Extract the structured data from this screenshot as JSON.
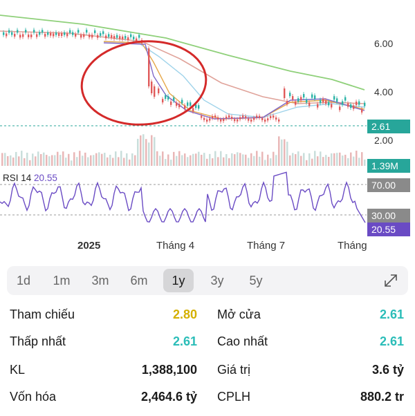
{
  "chart": {
    "y_axis_labels": [
      "6.00",
      "4.00",
      "2.00"
    ],
    "last_price": "2.61",
    "last_volume": "1.39M",
    "rsi_title": "RSI 14",
    "rsi_value": "20.55",
    "rsi_levels": [
      "70.00",
      "30.00"
    ],
    "x_axis_labels": [
      "2025",
      "Tháng 4",
      "Tháng 7",
      "Tháng"
    ],
    "colors": {
      "price_tag": "#27a69a",
      "volume_tag": "#27a69a",
      "rsi_tag": "#6a4bc4",
      "level_tag": "#8a8a8a",
      "ma_long": "#8fd07a",
      "ma_mid": "#e0a39a",
      "ma_short": "#9fd3ea",
      "ma_fast": "#e6a84a",
      "ma_faster": "#7e66c8",
      "annotation_circle": "#d42a2a",
      "rsi_line": "#6a4bc4"
    }
  },
  "periods": {
    "items": [
      "1d",
      "1m",
      "3m",
      "6m",
      "1y",
      "3y",
      "5y"
    ],
    "active": "1y"
  },
  "stats": {
    "tham_chieu_label": "Tham chiếu",
    "tham_chieu_value": "2.80",
    "mo_cua_label": "Mở cửa",
    "mo_cua_value": "2.61",
    "thap_nhat_label": "Thấp nhất",
    "thap_nhat_value": "2.61",
    "cao_nhat_label": "Cao nhất",
    "cao_nhat_value": "2.61",
    "kl_label": "KL",
    "kl_value": "1,388,100",
    "gia_tri_label": "Giá trị",
    "gia_tri_value": "3.6 tỷ",
    "von_hoa_label": "Vốn hóa",
    "von_hoa_value": "2,464.6 tỷ",
    "cplh_label": "CPLH",
    "cplh_value": "880.2 tr",
    "value_colors": {
      "ref": "#d4b000",
      "teal": "#2bbdb8",
      "dark": "#1a1a1a"
    }
  }
}
